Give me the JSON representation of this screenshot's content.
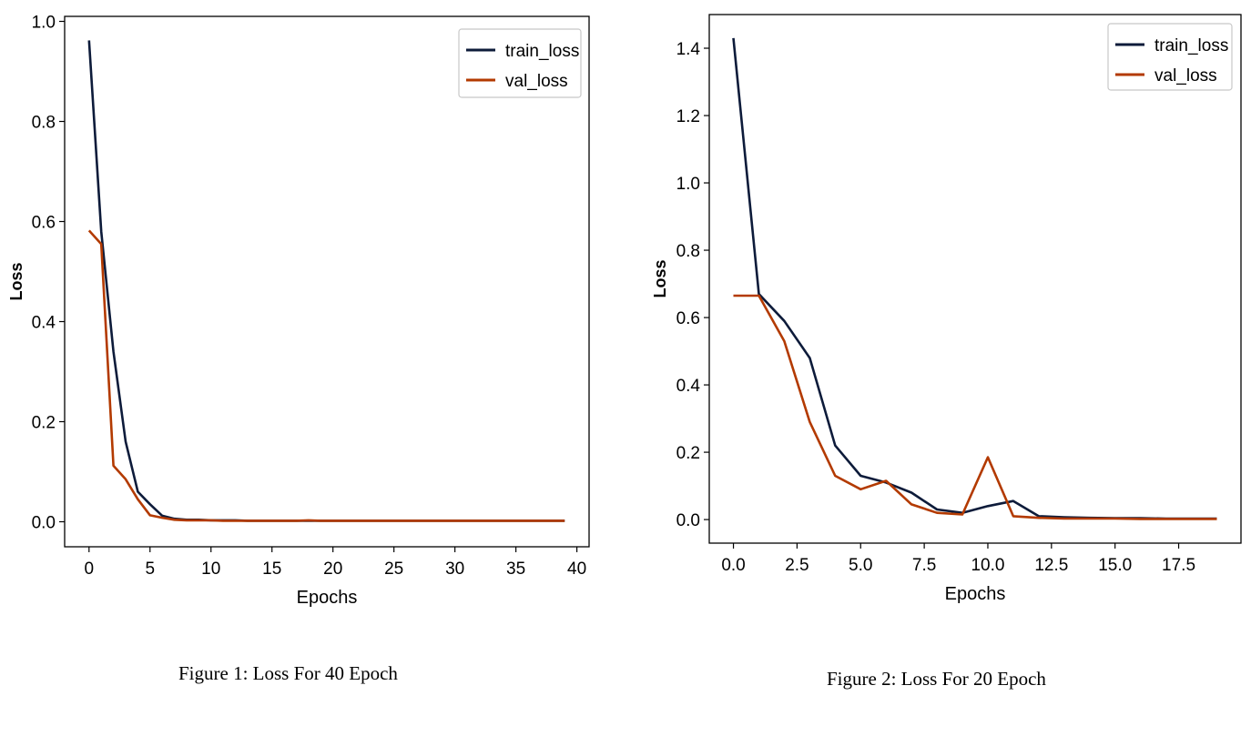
{
  "chart_data": [
    {
      "type": "line",
      "xlabel": "Epochs",
      "ylabel": "Loss",
      "caption": "Figure 1: Loss For 40 Epoch",
      "xlim": [
        -2,
        41
      ],
      "ylim": [
        -0.05,
        1.01
      ],
      "xticks": [
        0,
        5,
        10,
        15,
        20,
        25,
        30,
        35,
        40
      ],
      "xtick_labels": [
        "0",
        "5",
        "10",
        "15",
        "20",
        "25",
        "30",
        "35",
        "40"
      ],
      "yticks": [
        0.0,
        0.2,
        0.4,
        0.6,
        0.8,
        1.0
      ],
      "ytick_labels": [
        "0.0",
        "0.2",
        "0.4",
        "0.6",
        "0.8",
        "1.0"
      ],
      "legend_position": "top-right",
      "grid": false,
      "x": [
        0,
        1,
        2,
        3,
        4,
        5,
        6,
        7,
        8,
        9,
        10,
        11,
        12,
        13,
        14,
        15,
        16,
        17,
        18,
        19,
        20,
        21,
        22,
        23,
        24,
        25,
        26,
        27,
        28,
        29,
        30,
        31,
        32,
        33,
        34,
        35,
        36,
        37,
        38,
        39
      ],
      "series": [
        {
          "name": "train_loss",
          "color": "#0d1b3a",
          "values": [
            0.962,
            0.58,
            0.34,
            0.16,
            0.06,
            0.035,
            0.012,
            0.006,
            0.004,
            0.004,
            0.003,
            0.003,
            0.003,
            0.002,
            0.002,
            0.002,
            0.002,
            0.002,
            0.002,
            0.002,
            0.002,
            0.002,
            0.002,
            0.002,
            0.002,
            0.002,
            0.002,
            0.002,
            0.002,
            0.002,
            0.002,
            0.002,
            0.002,
            0.002,
            0.002,
            0.002,
            0.002,
            0.002,
            0.002,
            0.002
          ]
        },
        {
          "name": "val_loss",
          "color": "#b33a00",
          "values": [
            0.582,
            0.555,
            0.112,
            0.085,
            0.045,
            0.013,
            0.008,
            0.004,
            0.003,
            0.003,
            0.003,
            0.002,
            0.002,
            0.002,
            0.002,
            0.002,
            0.002,
            0.002,
            0.003,
            0.002,
            0.002,
            0.002,
            0.002,
            0.002,
            0.002,
            0.002,
            0.002,
            0.002,
            0.002,
            0.002,
            0.002,
            0.002,
            0.002,
            0.002,
            0.002,
            0.002,
            0.002,
            0.002,
            0.002,
            0.002
          ]
        }
      ]
    },
    {
      "type": "line",
      "xlabel": "Epochs",
      "ylabel": "Loss",
      "caption": "Figure 2: Loss For 20 Epoch",
      "xlim": [
        -0.95,
        19.95
      ],
      "ylim": [
        -0.07,
        1.5
      ],
      "xticks": [
        0.0,
        2.5,
        5.0,
        7.5,
        10.0,
        12.5,
        15.0,
        17.5
      ],
      "xtick_labels": [
        "0.0",
        "2.5",
        "5.0",
        "7.5",
        "10.0",
        "12.5",
        "15.0",
        "17.5"
      ],
      "yticks": [
        0.0,
        0.2,
        0.4,
        0.6,
        0.8,
        1.0,
        1.2,
        1.4
      ],
      "ytick_labels": [
        "0.0",
        "0.2",
        "0.4",
        "0.6",
        "0.8",
        "1.0",
        "1.2",
        "1.4"
      ],
      "legend_position": "top-right",
      "grid": false,
      "x": [
        0,
        1,
        2,
        3,
        4,
        5,
        6,
        7,
        8,
        9,
        10,
        11,
        12,
        13,
        14,
        15,
        16,
        17,
        18,
        19
      ],
      "series": [
        {
          "name": "train_loss",
          "color": "#0d1b3a",
          "values": [
            1.43,
            0.67,
            0.59,
            0.48,
            0.22,
            0.13,
            0.11,
            0.08,
            0.03,
            0.02,
            0.04,
            0.055,
            0.01,
            0.007,
            0.005,
            0.004,
            0.004,
            0.003,
            0.003,
            0.003
          ]
        },
        {
          "name": "val_loss",
          "color": "#b33a00",
          "values": [
            0.665,
            0.665,
            0.53,
            0.29,
            0.13,
            0.09,
            0.115,
            0.045,
            0.02,
            0.015,
            0.185,
            0.01,
            0.005,
            0.003,
            0.003,
            0.003,
            0.002,
            0.002,
            0.002,
            0.002
          ]
        }
      ]
    }
  ]
}
